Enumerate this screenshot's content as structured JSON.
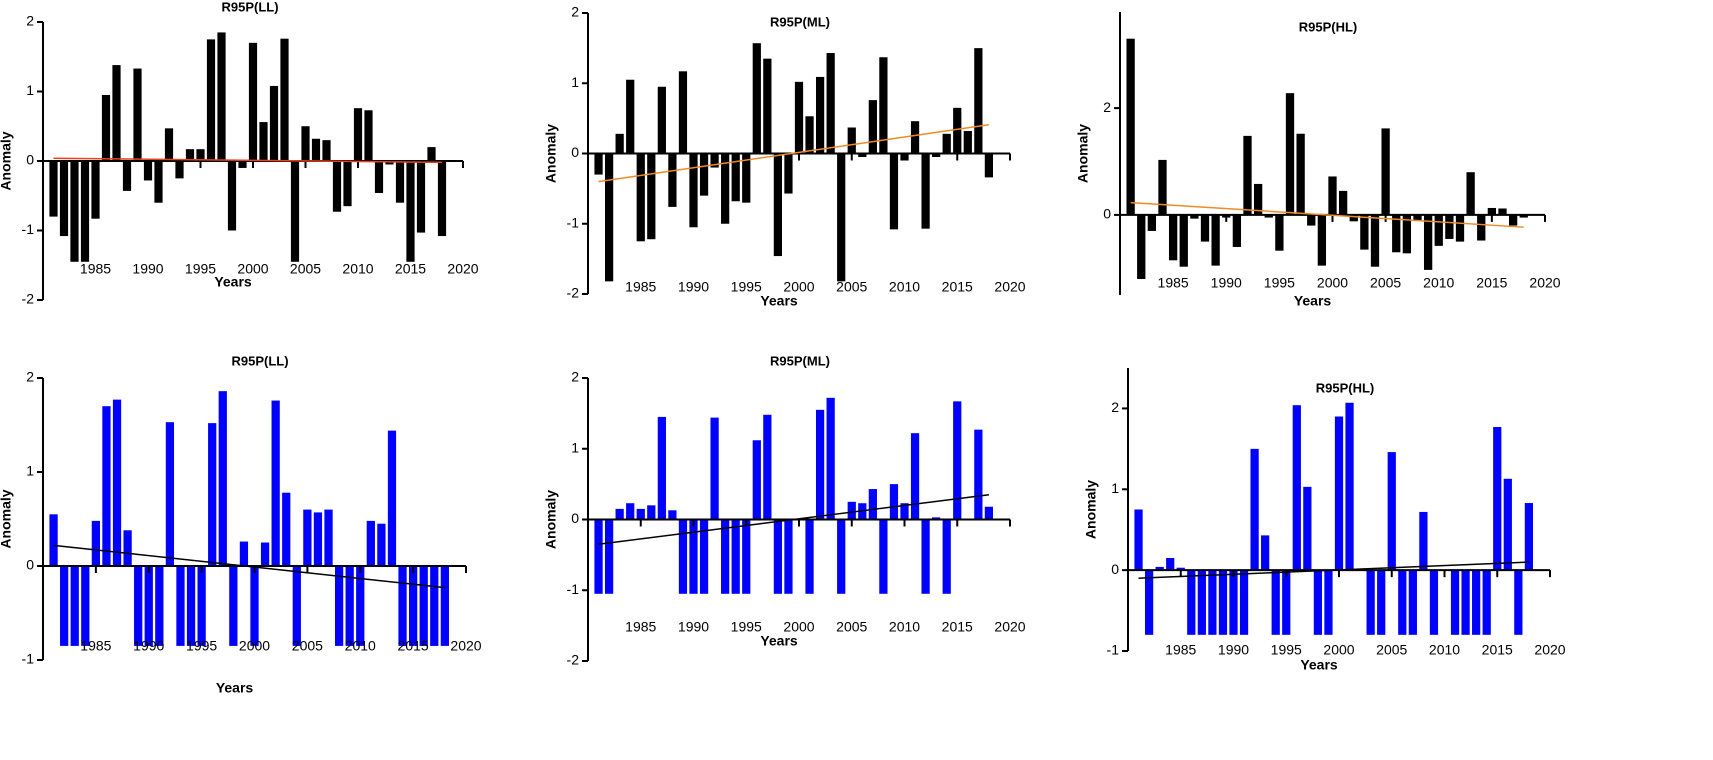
{
  "chart_data": [
    {
      "type": "bar",
      "title": "R95P(LL)",
      "xlabel": "Years",
      "ylabel": "Anomaly",
      "color": "#000000",
      "x": [
        1981,
        1982,
        1983,
        1984,
        1985,
        1986,
        1987,
        1988,
        1989,
        1990,
        1991,
        1992,
        1993,
        1994,
        1995,
        1996,
        1997,
        1998,
        1999,
        2000,
        2001,
        2002,
        2003,
        2004,
        2005,
        2006,
        2007,
        2008,
        2009,
        2010,
        2011,
        2012,
        2013,
        2014,
        2015,
        2016,
        2017,
        2018
      ],
      "values": [
        -0.8,
        -1.08,
        -1.45,
        -1.45,
        -0.83,
        0.95,
        1.38,
        -0.43,
        1.33,
        -0.28,
        -0.6,
        0.47,
        -0.25,
        0.17,
        0.17,
        1.75,
        1.85,
        -1.0,
        -0.1,
        1.7,
        0.56,
        1.08,
        1.76,
        -1.45,
        0.5,
        0.32,
        0.3,
        -0.73,
        -0.65,
        0.76,
        0.73,
        -0.46,
        -0.05,
        -0.6,
        -1.45,
        -1.03,
        0.2,
        -1.08
      ],
      "trend_x": [
        1981,
        2018
      ],
      "trend_values": [
        0.04,
        -0.02
      ],
      "trend_color": "#e8411b",
      "xlim": [
        1980,
        2020
      ],
      "xticks": [
        1985,
        1990,
        1995,
        2000,
        2005,
        2010,
        2015,
        2020
      ],
      "ylim": [
        -2,
        2
      ],
      "yticks": [
        -2,
        -1,
        0,
        1,
        2
      ]
    },
    {
      "type": "bar",
      "title": "R95P(ML)",
      "xlabel": "Years",
      "ylabel": "Anomaly",
      "color": "#000000",
      "x": [
        1981,
        1982,
        1983,
        1984,
        1985,
        1986,
        1987,
        1988,
        1989,
        1990,
        1991,
        1992,
        1993,
        1994,
        1995,
        1996,
        1997,
        1998,
        1999,
        2000,
        2001,
        2002,
        2003,
        2004,
        2005,
        2006,
        2007,
        2008,
        2009,
        2010,
        2011,
        2012,
        2013,
        2014,
        2015,
        2016,
        2017,
        2018
      ],
      "values": [
        -0.3,
        -1.82,
        0.28,
        1.05,
        -1.25,
        -1.22,
        0.95,
        -0.76,
        1.17,
        -1.05,
        -0.6,
        -0.2,
        -1.0,
        -0.68,
        -0.7,
        1.57,
        1.35,
        -1.46,
        -0.57,
        1.02,
        0.53,
        1.09,
        1.43,
        -1.82,
        0.37,
        -0.05,
        0.76,
        1.37,
        -1.08,
        -0.1,
        0.46,
        -1.07,
        -0.05,
        0.28,
        0.65,
        0.32,
        1.5,
        -0.34
      ],
      "trend_x": [
        1981,
        2018
      ],
      "trend_values": [
        -0.4,
        0.41
      ],
      "trend_color": "#f08a24",
      "xlim": [
        1980,
        2020
      ],
      "xticks": [
        1985,
        1990,
        1995,
        2000,
        2005,
        2010,
        2015,
        2020
      ],
      "ylim": [
        -2,
        2
      ],
      "yticks": [
        -2,
        -1,
        0,
        1,
        2
      ]
    },
    {
      "type": "bar",
      "title": "R95P(HL)",
      "xlabel": "Years",
      "ylabel": "Anomaly",
      "color": "#000000",
      "x": [
        1981,
        1982,
        1983,
        1984,
        1985,
        1986,
        1987,
        1988,
        1989,
        1990,
        1991,
        1992,
        1993,
        1994,
        1995,
        1996,
        1997,
        1998,
        1999,
        2000,
        2001,
        2002,
        2003,
        2004,
        2005,
        2006,
        2007,
        2008,
        2009,
        2010,
        2011,
        2012,
        2013,
        2014,
        2015,
        2016,
        2017,
        2018
      ],
      "values": [
        3.3,
        -1.2,
        -0.3,
        1.03,
        -0.85,
        -0.97,
        -0.07,
        -0.5,
        -0.95,
        -0.05,
        -0.6,
        1.48,
        0.58,
        -0.05,
        -0.67,
        2.28,
        1.52,
        -0.2,
        -0.95,
        0.72,
        0.45,
        -0.12,
        -0.65,
        -0.97,
        1.62,
        -0.7,
        -0.72,
        -0.1,
        -1.03,
        -0.58,
        -0.45,
        -0.5,
        0.8,
        -0.48,
        0.13,
        0.12,
        -0.2,
        -0.05
      ],
      "trend_x": [
        1981,
        2018
      ],
      "trend_values": [
        0.23,
        -0.23
      ],
      "trend_color": "#f08a24",
      "xlim": [
        1980,
        2020
      ],
      "xticks": [
        1985,
        1990,
        1995,
        2000,
        2005,
        2010,
        2015,
        2020
      ],
      "ylim": [
        -1.5,
        3.8
      ],
      "yticks": [
        0,
        2
      ]
    },
    {
      "type": "bar",
      "title": "R95P(LL)",
      "xlabel": "Years",
      "ylabel": "Anomaly",
      "color": "#0000ff",
      "x": [
        1981,
        1982,
        1983,
        1984,
        1985,
        1986,
        1987,
        1988,
        1989,
        1990,
        1991,
        1992,
        1993,
        1994,
        1995,
        1996,
        1997,
        1998,
        1999,
        2000,
        2001,
        2002,
        2003,
        2004,
        2005,
        2006,
        2007,
        2008,
        2009,
        2010,
        2011,
        2012,
        2013,
        2014,
        2015,
        2016,
        2017,
        2018
      ],
      "values": [
        0.55,
        -0.85,
        -0.85,
        -0.85,
        0.48,
        1.7,
        1.77,
        0.38,
        -0.85,
        -0.85,
        -0.85,
        1.53,
        -0.85,
        -0.85,
        -0.85,
        1.52,
        1.86,
        -0.85,
        0.26,
        -0.85,
        0.25,
        1.76,
        0.78,
        -0.85,
        0.6,
        0.57,
        0.6,
        -0.85,
        -0.85,
        -0.85,
        0.48,
        0.45,
        1.44,
        -0.85,
        -0.85,
        -0.85,
        -0.85,
        -0.85
      ],
      "trend_x": [
        1981,
        2018
      ],
      "trend_values": [
        0.22,
        -0.23
      ],
      "trend_color": "#000000",
      "xlim": [
        1980,
        2020
      ],
      "xticks": [
        1985,
        1990,
        1995,
        2000,
        2005,
        2010,
        2015,
        2020
      ],
      "ylim": [
        -1,
        2
      ],
      "yticks": [
        -1,
        0,
        1,
        2
      ]
    },
    {
      "type": "bar",
      "title": "R95P(ML)",
      "xlabel": "Years",
      "ylabel": "Anomaly",
      "color": "#0000ff",
      "x": [
        1981,
        1982,
        1983,
        1984,
        1985,
        1986,
        1987,
        1988,
        1989,
        1990,
        1991,
        1992,
        1993,
        1994,
        1995,
        1996,
        1997,
        1998,
        1999,
        2000,
        2001,
        2002,
        2003,
        2004,
        2005,
        2006,
        2007,
        2008,
        2009,
        2010,
        2011,
        2012,
        2013,
        2014,
        2015,
        2016,
        2017,
        2018
      ],
      "values": [
        -1.05,
        -1.05,
        0.15,
        0.23,
        0.15,
        0.2,
        1.45,
        0.13,
        -1.05,
        -1.05,
        -1.05,
        1.44,
        -1.05,
        -1.05,
        -1.05,
        1.12,
        1.48,
        -1.05,
        -1.05,
        0,
        -1.05,
        1.55,
        1.72,
        -1.05,
        0.25,
        0.23,
        0.43,
        -1.05,
        0.5,
        0.23,
        1.22,
        -1.05,
        0.03,
        -1.05,
        1.67,
        0,
        1.27,
        0.18
      ],
      "trend_x": [
        1981,
        2018
      ],
      "trend_values": [
        -0.35,
        0.35
      ],
      "trend_color": "#000000",
      "xlim": [
        1980,
        2020
      ],
      "xticks": [
        1985,
        1990,
        1995,
        2000,
        2005,
        2010,
        2015,
        2020
      ],
      "ylim": [
        -2,
        2
      ],
      "yticks": [
        -2,
        -1,
        0,
        1,
        2
      ]
    },
    {
      "type": "bar",
      "title": "R95P(HL)",
      "xlabel": "Years",
      "ylabel": "Anomaly",
      "color": "#0000ff",
      "x": [
        1981,
        1982,
        1983,
        1984,
        1985,
        1986,
        1987,
        1988,
        1989,
        1990,
        1991,
        1992,
        1993,
        1994,
        1995,
        1996,
        1997,
        1998,
        1999,
        2000,
        2001,
        2002,
        2003,
        2004,
        2005,
        2006,
        2007,
        2008,
        2009,
        2010,
        2011,
        2012,
        2013,
        2014,
        2015,
        2016,
        2017,
        2018
      ],
      "values": [
        0.75,
        -0.8,
        0.04,
        0.15,
        0.03,
        -0.8,
        -0.8,
        -0.8,
        -0.8,
        -0.8,
        -0.8,
        1.5,
        0.43,
        -0.8,
        -0.8,
        2.04,
        1.03,
        -0.8,
        -0.8,
        1.9,
        2.07,
        0,
        -0.8,
        -0.8,
        1.46,
        -0.8,
        -0.8,
        0.72,
        -0.8,
        0,
        -0.8,
        -0.8,
        -0.8,
        -0.8,
        1.77,
        1.13,
        -0.8,
        0.83
      ],
      "trend_x": [
        1981,
        2018
      ],
      "trend_values": [
        -0.1,
        0.1
      ],
      "trend_color": "#000000",
      "xlim": [
        1980,
        2020
      ],
      "xticks": [
        1985,
        1990,
        1995,
        2000,
        2005,
        2010,
        2015,
        2020
      ],
      "ylim": [
        -1,
        2.5
      ],
      "yticks": [
        -1,
        0,
        1,
        2
      ]
    }
  ]
}
